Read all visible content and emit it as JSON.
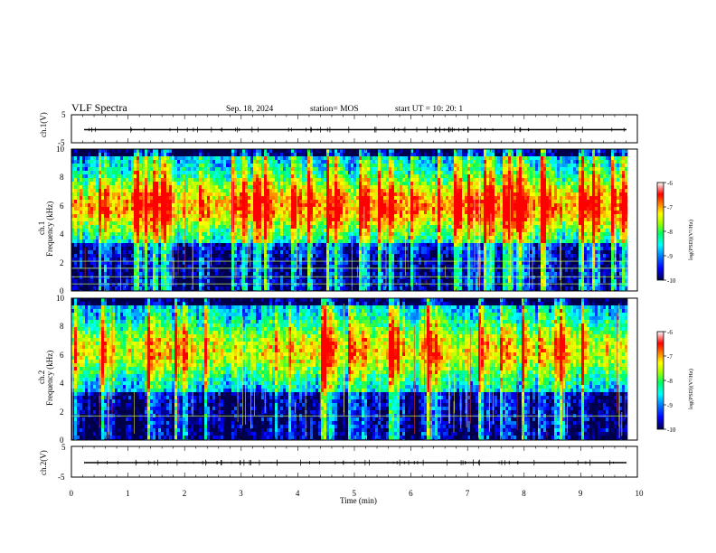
{
  "header": {
    "title": "VLF Spectra",
    "date": "Sep. 18, 2024",
    "station": "station= MOS",
    "start": "start  UT  =   10: 20: 1"
  },
  "chart_data": [
    {
      "type": "line",
      "id": "ch1_waveform",
      "ylabel": "ch.1(V)",
      "ylim": [
        -5,
        5
      ],
      "yticks": [
        "5",
        "-5"
      ],
      "xlim": [
        0,
        10
      ],
      "trace_level": 0,
      "trace_color": "#000000"
    },
    {
      "type": "heatmap",
      "id": "ch1_spectrogram",
      "ylabel_top": "ch.1",
      "ylabel": "Frequency (kHz)",
      "ylim": [
        0,
        10
      ],
      "yticks": [
        "0",
        "2",
        "4",
        "6",
        "8",
        "10"
      ],
      "xlim": [
        0,
        9.83
      ],
      "band_center_khz": 6.0,
      "colorbar": {
        "label": "log(PSD)(V²/Hz)",
        "range": [
          -10,
          -6
        ],
        "ticks": [
          "-6",
          "-7",
          "-8",
          "-9",
          "-10"
        ],
        "colors": [
          "#00004a",
          "#0000ff",
          "#0080ff",
          "#00ffff",
          "#00ff60",
          "#a0ff00",
          "#ffff00",
          "#ff8000",
          "#ff0000",
          "#ffffff"
        ]
      },
      "horizontal_lines_khz": [
        0.5,
        1.0,
        1.6,
        2.1
      ]
    },
    {
      "type": "heatmap",
      "id": "ch2_spectrogram",
      "ylabel_top": "ch.2",
      "ylabel": "Frequency (kHz)",
      "ylim": [
        0,
        10
      ],
      "yticks": [
        "0",
        "2",
        "4",
        "6",
        "8",
        "10"
      ],
      "xlim": [
        0,
        9.83
      ],
      "band_center_khz": 6.3,
      "colorbar": {
        "label": "log(PSD)(V²/Hz)",
        "range": [
          -10,
          -6
        ],
        "ticks": [
          "-6",
          "-7",
          "-8",
          "-9",
          "-10"
        ],
        "colors": [
          "#00004a",
          "#0000ff",
          "#0080ff",
          "#00ffff",
          "#00ff60",
          "#a0ff00",
          "#ffff00",
          "#ff8000",
          "#ff0000",
          "#ffffff"
        ]
      },
      "horizontal_lines_khz": [
        1.7
      ]
    },
    {
      "type": "line",
      "id": "ch2_waveform",
      "ylabel": "ch.2(V)",
      "ylim": [
        -5,
        5
      ],
      "yticks": [
        "5",
        "-5"
      ],
      "xlim": [
        0,
        10
      ],
      "trace_level": 0,
      "trace_color": "#000000"
    }
  ],
  "xaxis": {
    "label": "Time (min)",
    "ticks": [
      "0",
      "1",
      "2",
      "3",
      "4",
      "5",
      "6",
      "7",
      "8",
      "9",
      "10"
    ],
    "range": [
      0,
      10
    ]
  }
}
